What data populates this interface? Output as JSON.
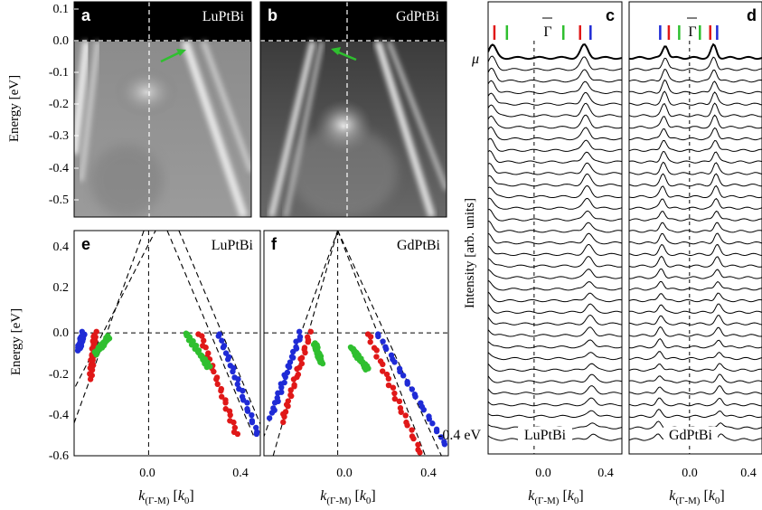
{
  "panels": {
    "a": {
      "letter": "a",
      "material": "LuPtBi"
    },
    "b": {
      "letter": "b",
      "material": "GdPtBi"
    },
    "c": {
      "letter": "c",
      "material": "LuPtBi",
      "gamma": "Γ"
    },
    "d": {
      "letter": "d",
      "material": "GdPtBi",
      "gamma": "Γ"
    },
    "e": {
      "letter": "e",
      "material": "LuPtBi"
    },
    "f": {
      "letter": "f",
      "material": "GdPtBi"
    }
  },
  "labels": {
    "mu": "μ",
    "intensity": "Intensity [arb. units]",
    "energy_top": "Energy [eV]",
    "energy_bottom": "Energy [eV]",
    "k_main": "k",
    "k_sub": "(Γ-M)",
    "k_unit_pre": " [",
    "k_unit": "k",
    "k_unit_sub": "0",
    "k_unit_post": "]",
    "bottom_edc": "-0.4 eV"
  },
  "colors": {
    "blue": "#1f2bd6",
    "red": "#e01818",
    "green": "#2fbf2f"
  },
  "chart_data": [
    {
      "type": "heatmap",
      "panel": "a",
      "ylim": [
        -0.55,
        0.12
      ],
      "yticks": [
        "0.1",
        "0.0",
        "-0.1",
        "-0.2",
        "-0.3",
        "-0.4",
        "-0.5"
      ],
      "ylabel": "Energy [eV]",
      "annotation": "arrow marking band crossing at E_F"
    },
    {
      "type": "heatmap",
      "panel": "b",
      "ylim": [
        -0.55,
        0.12
      ]
    },
    {
      "type": "scatter",
      "panel": "e",
      "xlim": [
        -0.32,
        0.48
      ],
      "ylim": [
        -0.6,
        0.5
      ],
      "xticks": [
        "0.0",
        "0.4"
      ],
      "yticks": [
        "0.4",
        "0.2",
        "0.0",
        "-0.2",
        "-0.4",
        "-0.6"
      ],
      "ylabel": "Energy [eV]",
      "series": [
        {
          "color": "blue",
          "segments": [
            [
              [
                -0.3,
                -0.08
              ],
              [
                -0.28,
                0.0
              ]
            ],
            [
              [
                0.3,
                0.0
              ],
              [
                0.47,
                -0.5
              ]
            ]
          ]
        },
        {
          "color": "red",
          "segments": [
            [
              [
                -0.25,
                -0.22
              ],
              [
                -0.23,
                0.0
              ]
            ],
            [
              [
                0.22,
                0.0
              ],
              [
                0.38,
                -0.5
              ]
            ]
          ]
        },
        {
          "color": "green",
          "segments": [
            [
              [
                -0.23,
                -0.1
              ],
              [
                -0.17,
                -0.02
              ]
            ],
            [
              [
                0.16,
                0.0
              ],
              [
                0.26,
                -0.17
              ]
            ]
          ]
        }
      ],
      "guides": [
        [
          [
            -0.35,
            -0.34
          ],
          [
            0.03,
            0.5
          ]
        ],
        [
          [
            -0.32,
            -0.44
          ],
          [
            -0.02,
            0.5
          ]
        ],
        [
          [
            0.08,
            0.5
          ],
          [
            0.45,
            -0.5
          ]
        ],
        [
          [
            0.13,
            0.5
          ],
          [
            0.5,
            -0.5
          ]
        ]
      ]
    },
    {
      "type": "scatter",
      "panel": "f",
      "xlim": [
        -0.32,
        0.48
      ],
      "ylim": [
        -0.6,
        0.5
      ],
      "xticks": [
        "0.0",
        "0.4"
      ],
      "series": [
        {
          "color": "blue",
          "segments": [
            [
              [
                -0.29,
                -0.41
              ],
              [
                -0.16,
                0.0
              ]
            ],
            [
              [
                0.17,
                0.0
              ],
              [
                0.47,
                -0.55
              ]
            ]
          ]
        },
        {
          "color": "red",
          "segments": [
            [
              [
                -0.24,
                -0.43
              ],
              [
                -0.12,
                0.0
              ]
            ],
            [
              [
                0.13,
                0.0
              ],
              [
                0.36,
                -0.59
              ]
            ]
          ]
        },
        {
          "color": "green",
          "segments": [
            [
              [
                -0.1,
                -0.05
              ],
              [
                -0.07,
                -0.15
              ]
            ],
            [
              [
                0.06,
                -0.07
              ],
              [
                0.13,
                -0.18
              ]
            ]
          ]
        }
      ],
      "guides": [
        [
          [
            -0.35,
            -0.6
          ],
          [
            0.0,
            0.5
          ]
        ],
        [
          [
            -0.28,
            -0.6
          ],
          [
            0.0,
            0.5
          ]
        ],
        [
          [
            0.0,
            0.5
          ],
          [
            0.38,
            -0.6
          ]
        ],
        [
          [
            0.0,
            0.5
          ],
          [
            0.45,
            -0.6
          ]
        ]
      ]
    },
    {
      "type": "line",
      "panel": "c",
      "description": "stack of EDC-like curves with peaks, top at chemical potential",
      "xlim": [
        -0.22,
        0.42
      ],
      "xticks": [
        "0.0",
        "0.4"
      ],
      "curve_count": 34,
      "peaks": [
        -0.2,
        0.24
      ],
      "markers": [
        {
          "color": "blue",
          "k": -0.24
        },
        {
          "color": "red",
          "k": -0.19
        },
        {
          "color": "green",
          "k": -0.13
        },
        {
          "color": "green",
          "k": 0.14
        },
        {
          "color": "red",
          "k": 0.22
        },
        {
          "color": "blue",
          "k": 0.27
        }
      ]
    },
    {
      "type": "line",
      "panel": "d",
      "description": "stack of curves, GdPtBi",
      "xlim": [
        -0.35,
        0.42
      ],
      "xticks": [
        "0.0",
        "0.4"
      ],
      "curve_count": 34,
      "peaks": [
        -0.14,
        0.14
      ],
      "markers": [
        {
          "color": "blue",
          "k": -0.17
        },
        {
          "color": "red",
          "k": -0.12
        },
        {
          "color": "green",
          "k": -0.06
        },
        {
          "color": "green",
          "k": 0.06
        },
        {
          "color": "red",
          "k": 0.12
        },
        {
          "color": "blue",
          "k": 0.16
        }
      ]
    }
  ]
}
